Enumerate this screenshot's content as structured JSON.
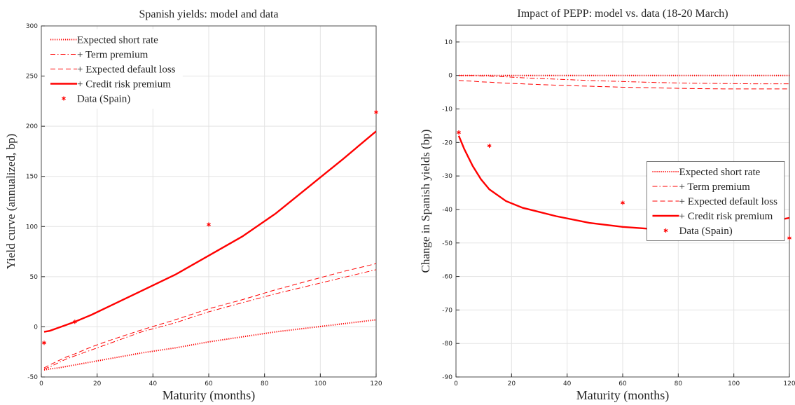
{
  "chart_data": [
    {
      "type": "line",
      "title": "Spanish yields: model and data",
      "xlabel": "Maturity (months)",
      "ylabel": "Yield curve (annualized, bp)",
      "xlim": [
        0,
        120
      ],
      "ylim": [
        -50,
        300
      ],
      "xticks": [
        0,
        20,
        40,
        60,
        80,
        100,
        120
      ],
      "yticks": [
        -50,
        0,
        50,
        100,
        150,
        200,
        250,
        300
      ],
      "grid": true,
      "legend_position": "northwest",
      "series": [
        {
          "name": "Expected short rate",
          "color": "#ff0000",
          "style": "dotted",
          "x": [
            1,
            3,
            6,
            9,
            12,
            18,
            24,
            36,
            48,
            60,
            72,
            84,
            96,
            108,
            120
          ],
          "values": [
            -43,
            -42,
            -41,
            -39.5,
            -38,
            -35,
            -32,
            -26,
            -21,
            -15,
            -10,
            -5,
            -1,
            3,
            7
          ]
        },
        {
          "name": "+ Term premium",
          "color": "#ff0000",
          "style": "dashdot",
          "x": [
            1,
            3,
            6,
            9,
            12,
            18,
            24,
            36,
            48,
            60,
            72,
            84,
            96,
            108,
            120
          ],
          "values": [
            -42,
            -40,
            -36,
            -32,
            -29,
            -23,
            -17,
            -5,
            4,
            15,
            24,
            33,
            41,
            49,
            57
          ]
        },
        {
          "name": "+ Expected default loss",
          "color": "#ff0000",
          "style": "dashed",
          "x": [
            1,
            3,
            6,
            9,
            12,
            18,
            24,
            36,
            48,
            60,
            72,
            84,
            96,
            108,
            120
          ],
          "values": [
            -41,
            -38,
            -34,
            -30,
            -27,
            -20,
            -14,
            -3,
            7,
            18,
            27,
            37,
            46,
            55,
            63
          ]
        },
        {
          "name": "+ Credit risk premium",
          "color": "#ff0000",
          "style": "solid",
          "x": [
            1,
            3,
            6,
            9,
            12,
            18,
            24,
            36,
            48,
            60,
            72,
            84,
            96,
            108,
            120
          ],
          "values": [
            -5,
            -4,
            -1,
            2,
            5,
            12,
            20,
            36,
            52,
            71,
            90,
            113,
            140,
            167,
            195
          ]
        },
        {
          "name": "Data (Spain)",
          "color": "#ff0000",
          "style": "markers",
          "x": [
            1,
            12,
            60,
            120
          ],
          "values": [
            -16,
            5,
            102,
            214
          ]
        }
      ]
    },
    {
      "type": "line",
      "title": "Impact of PEPP: model vs. data (18-20 March)",
      "xlabel": "Maturity (months)",
      "ylabel": "Change in Spanish yields (bp)",
      "xlim": [
        0,
        120
      ],
      "ylim": [
        -90,
        15
      ],
      "xticks": [
        0,
        20,
        40,
        60,
        80,
        100,
        120
      ],
      "yticks": [
        -90,
        -80,
        -70,
        -60,
        -50,
        -40,
        -30,
        -20,
        -10,
        0,
        10
      ],
      "grid": true,
      "legend_position": "east",
      "series": [
        {
          "name": "Expected short rate",
          "color": "#ff0000",
          "style": "dotted",
          "x": [
            1,
            3,
            6,
            9,
            12,
            18,
            24,
            36,
            48,
            60,
            72,
            84,
            96,
            108,
            120
          ],
          "values": [
            0,
            0,
            0,
            0,
            0,
            0,
            0,
            0,
            0,
            0,
            0,
            0,
            0,
            0,
            0
          ]
        },
        {
          "name": "+ Term premium",
          "color": "#ff0000",
          "style": "dashdot",
          "x": [
            1,
            3,
            6,
            9,
            12,
            18,
            24,
            36,
            48,
            60,
            72,
            84,
            96,
            108,
            120
          ],
          "values": [
            0,
            0,
            0,
            -0.1,
            -0.2,
            -0.4,
            -0.7,
            -1.1,
            -1.5,
            -1.8,
            -2.1,
            -2.3,
            -2.4,
            -2.5,
            -2.5
          ]
        },
        {
          "name": "+ Expected default loss",
          "color": "#ff0000",
          "style": "dashed",
          "x": [
            1,
            3,
            6,
            9,
            12,
            18,
            24,
            36,
            48,
            60,
            72,
            84,
            96,
            108,
            120
          ],
          "values": [
            -1.5,
            -1.6,
            -1.7,
            -1.9,
            -2,
            -2.3,
            -2.5,
            -2.9,
            -3.2,
            -3.5,
            -3.7,
            -3.9,
            -4,
            -4,
            -4
          ]
        },
        {
          "name": "+ Credit risk premium",
          "color": "#ff0000",
          "style": "solid",
          "x": [
            1,
            3,
            6,
            9,
            12,
            18,
            24,
            36,
            48,
            60,
            72,
            84,
            96,
            108,
            120
          ],
          "values": [
            -18,
            -22,
            -27,
            -31,
            -34,
            -37.5,
            -39.5,
            -42,
            -44,
            -45.2,
            -45.9,
            -46,
            -45.6,
            -44.5,
            -42.5
          ]
        },
        {
          "name": "Data (Spain)",
          "color": "#ff0000",
          "style": "markers",
          "x": [
            1,
            12,
            60,
            120
          ],
          "values": [
            -17,
            -21,
            -38,
            -48.5
          ]
        }
      ]
    }
  ]
}
